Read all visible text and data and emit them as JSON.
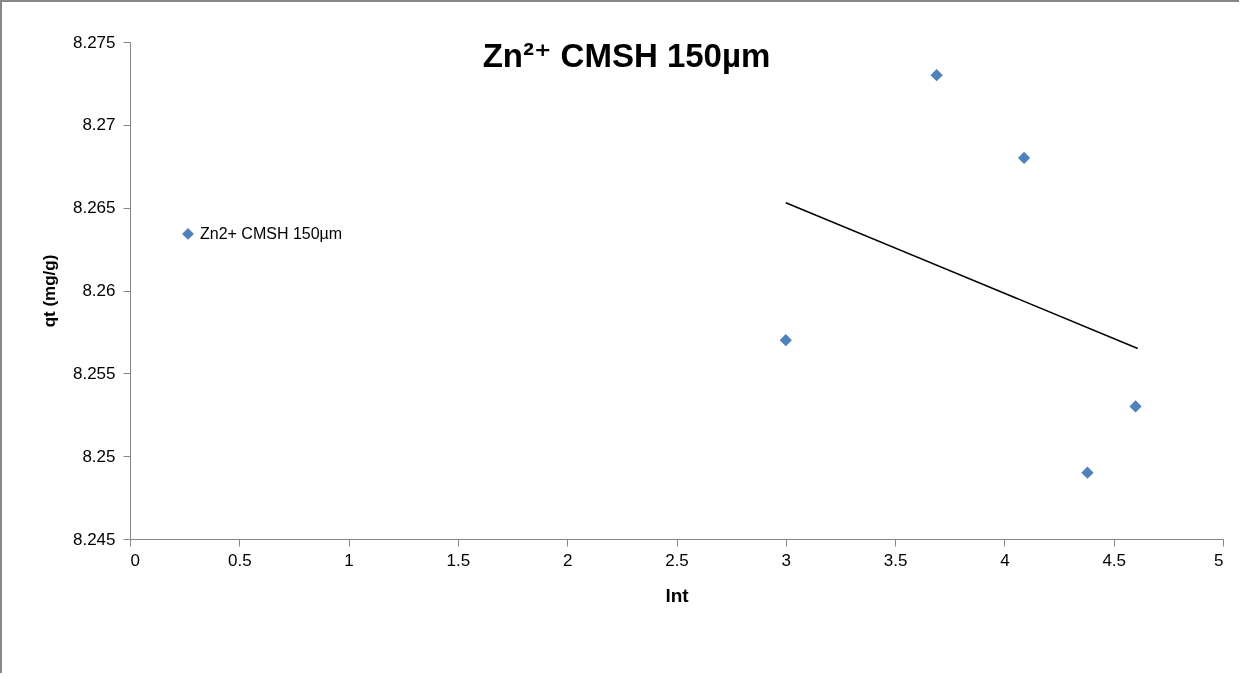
{
  "chart_data": {
    "type": "scatter",
    "title": "Zn²⁺ CMSH 150µm",
    "xlabel": "lnt",
    "ylabel": "qt (mg/g)",
    "xlim": [
      0,
      5
    ],
    "xticks": [
      0,
      0.5,
      1,
      1.5,
      2,
      2.5,
      3,
      3.5,
      4,
      4.5,
      5
    ],
    "ylim": [
      8.245,
      8.275
    ],
    "yticks": [
      8.245,
      8.25,
      8.255,
      8.26,
      8.265,
      8.27,
      8.275
    ],
    "grid": false,
    "legend": "left",
    "marker": "diamond",
    "series": [
      {
        "name": "Zn2+ CMSH 150µm",
        "color": "#4f81bd",
        "x": [
          3.0,
          3.69,
          4.09,
          4.38,
          4.6
        ],
        "values": [
          8.257,
          8.273,
          8.268,
          8.249,
          8.253
        ]
      },
      {
        "type": "line",
        "marker": "none",
        "color": "#000000",
        "x": [
          3.0,
          4.61
        ],
        "values": [
          8.2653,
          8.2565
        ]
      }
    ]
  }
}
